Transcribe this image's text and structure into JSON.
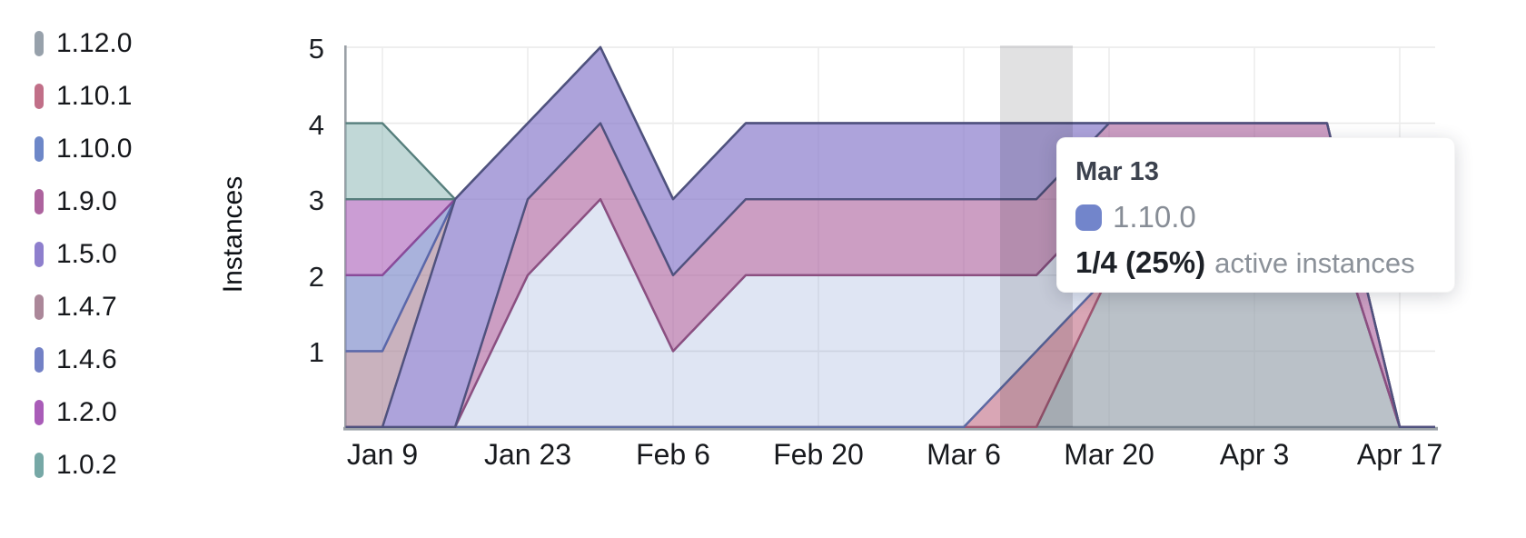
{
  "chart": {
    "y_title": "Instances"
  },
  "tooltip": {
    "date": "Mar 13",
    "series": "1.10.0",
    "swatch_color": "#7285cb",
    "value": "1/4 (25%)",
    "caption": "active instances"
  },
  "chart_data": {
    "type": "area",
    "stacked": true,
    "title": "",
    "xlabel": "",
    "ylabel": "Instances",
    "ylim": [
      0,
      5
    ],
    "grid": true,
    "legend_position": "left",
    "x": [
      "Jan 2",
      "Jan 9",
      "Jan 16",
      "Jan 23",
      "Jan 30",
      "Feb 6",
      "Feb 13",
      "Feb 20",
      "Feb 27",
      "Mar 6",
      "Mar 13",
      "Mar 20",
      "Mar 27",
      "Apr 3",
      "Apr 10",
      "Apr 17"
    ],
    "x_tick_labels": [
      "Jan 9",
      "Jan 23",
      "Feb 6",
      "Feb 20",
      "Mar 6",
      "Mar 20",
      "Apr 3",
      "Apr 17"
    ],
    "y_ticks": [
      1,
      2,
      3,
      4,
      5
    ],
    "highlight_x": "Mar 13",
    "highlight_band_color": "rgba(33,33,38,0.135)",
    "axis_color": "#9aa0a6",
    "gridline_color": "#e9e9e9",
    "series": [
      {
        "name": "1.12.0",
        "legend_color": "#97a1ab",
        "fill": "rgba(151,161,171,0.66)",
        "stroke": "#76828e",
        "values": [
          0,
          0,
          0,
          0,
          0,
          0,
          0,
          0,
          0,
          0,
          0,
          2,
          3,
          3,
          3,
          0
        ]
      },
      {
        "name": "1.10.1",
        "legend_color": "#c16f88",
        "fill": "rgba(193,111,136,0.62)",
        "stroke": "#a05672",
        "values": [
          0,
          0,
          0,
          0,
          0,
          0,
          0,
          0,
          0,
          0,
          1,
          0,
          0,
          0,
          0,
          0
        ]
      },
      {
        "name": "1.10.0",
        "legend_color": "#6d87c8",
        "fill": "rgba(109,135,200,0.22)",
        "stroke": "#5b6aa4",
        "values": [
          0,
          0,
          0,
          2,
          3,
          1,
          2,
          2,
          2,
          2,
          1,
          1,
          0,
          0,
          0,
          0
        ]
      },
      {
        "name": "1.9.0",
        "legend_color": "#ad639e",
        "fill": "rgba(173,99,158,0.62)",
        "stroke": "#8c4f80",
        "values": [
          0,
          0,
          0,
          1,
          1,
          1,
          1,
          1,
          1,
          1,
          1,
          1,
          1,
          1,
          1,
          0
        ]
      },
      {
        "name": "1.5.0",
        "legend_color": "#8e7fcd",
        "fill": "rgba(142,127,205,0.72)",
        "stroke": "#4f527e",
        "values": [
          0,
          0,
          3,
          1,
          1,
          1,
          1,
          1,
          1,
          1,
          1,
          0,
          0,
          0,
          0,
          0
        ]
      },
      {
        "name": "1.4.7",
        "legend_color": "#ab8799",
        "fill": "rgba(171,135,153,0.64)",
        "stroke": "#8d6a7c",
        "values": [
          1,
          1,
          0,
          0,
          0,
          0,
          0,
          0,
          0,
          0,
          0,
          0,
          0,
          0,
          0,
          0
        ]
      },
      {
        "name": "1.4.6",
        "legend_color": "#7381c6",
        "fill": "rgba(115,129,198,0.61)",
        "stroke": "#5a68ab",
        "values": [
          1,
          1,
          0,
          0,
          0,
          0,
          0,
          0,
          0,
          0,
          0,
          0,
          0,
          0,
          0,
          0
        ]
      },
      {
        "name": "1.2.0",
        "legend_color": "#a95cb8",
        "fill": "rgba(169,92,184,0.60)",
        "stroke": "#8a4a99",
        "values": [
          1,
          1,
          0,
          0,
          0,
          0,
          0,
          0,
          0,
          0,
          0,
          0,
          0,
          0,
          0,
          0
        ]
      },
      {
        "name": "1.0.2",
        "legend_color": "#76a8a6",
        "fill": "rgba(118,168,166,0.45)",
        "stroke": "#567e7c",
        "values": [
          1,
          1,
          0,
          0,
          0,
          0,
          0,
          0,
          0,
          0,
          0,
          0,
          0,
          0,
          0,
          0
        ]
      }
    ],
    "draw_order": [
      "1.4.7",
      "1.4.6",
      "1.2.0",
      "1.0.2",
      "1.12.0",
      "1.10.1",
      "1.10.0",
      "1.9.0",
      "1.5.0"
    ]
  }
}
